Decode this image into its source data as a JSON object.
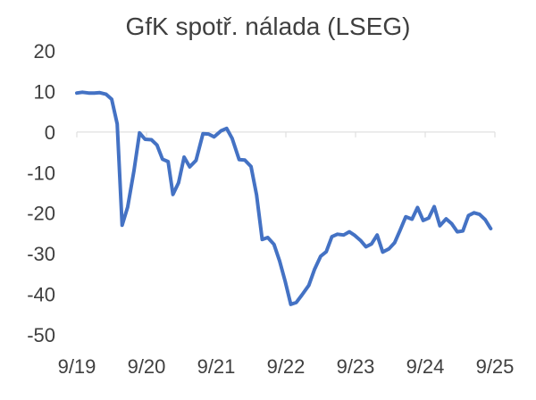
{
  "chart_data": {
    "type": "line",
    "title": "GfK spotř. nálada (LSEG)",
    "xlabel": "",
    "ylabel": "",
    "ylim": [
      -50,
      20
    ],
    "yticks": [
      20,
      10,
      0,
      -10,
      -20,
      -30,
      -40,
      -50
    ],
    "xlim": [
      2019.75,
      2025.75
    ],
    "xticks": [
      {
        "x": 2019.75,
        "label": "9/19"
      },
      {
        "x": 2020.75,
        "label": "9/20"
      },
      {
        "x": 2021.75,
        "label": "9/21"
      },
      {
        "x": 2022.75,
        "label": "9/22"
      },
      {
        "x": 2023.75,
        "label": "9/23"
      },
      {
        "x": 2024.75,
        "label": "9/24"
      },
      {
        "x": 2025.75,
        "label": "9/25"
      }
    ],
    "grid": false,
    "legend": "none",
    "series": [
      {
        "color": "#4472c4",
        "points": [
          [
            2019.75,
            9.6
          ],
          [
            2019.83,
            9.8
          ],
          [
            2019.92,
            9.6
          ],
          [
            2020.0,
            9.6
          ],
          [
            2020.08,
            9.7
          ],
          [
            2020.17,
            9.3
          ],
          [
            2020.25,
            8.1
          ],
          [
            2020.33,
            2.0
          ],
          [
            2020.4,
            -23.0
          ],
          [
            2020.48,
            -18.5
          ],
          [
            2020.57,
            -9.5
          ],
          [
            2020.65,
            -0.2
          ],
          [
            2020.73,
            -1.8
          ],
          [
            2020.82,
            -1.9
          ],
          [
            2020.9,
            -3.2
          ],
          [
            2020.98,
            -6.7
          ],
          [
            2021.06,
            -7.3
          ],
          [
            2021.13,
            -15.4
          ],
          [
            2021.21,
            -12.5
          ],
          [
            2021.29,
            -6.2
          ],
          [
            2021.37,
            -8.6
          ],
          [
            2021.46,
            -7.0
          ],
          [
            2021.56,
            -0.4
          ],
          [
            2021.64,
            -0.5
          ],
          [
            2021.72,
            -1.2
          ],
          [
            2021.82,
            0.3
          ],
          [
            2021.9,
            0.9
          ],
          [
            2021.98,
            -1.6
          ],
          [
            2022.08,
            -6.8
          ],
          [
            2022.16,
            -6.9
          ],
          [
            2022.25,
            -8.5
          ],
          [
            2022.33,
            -15.5
          ],
          [
            2022.41,
            -26.5
          ],
          [
            2022.49,
            -26.0
          ],
          [
            2022.58,
            -27.7
          ],
          [
            2022.66,
            -31.8
          ],
          [
            2022.74,
            -36.8
          ],
          [
            2022.82,
            -42.5
          ],
          [
            2022.9,
            -42.0
          ],
          [
            2022.98,
            -40.2
          ],
          [
            2023.08,
            -37.8
          ],
          [
            2023.16,
            -33.9
          ],
          [
            2023.25,
            -30.6
          ],
          [
            2023.33,
            -29.5
          ],
          [
            2023.41,
            -25.8
          ],
          [
            2023.49,
            -25.2
          ],
          [
            2023.58,
            -25.4
          ],
          [
            2023.66,
            -24.6
          ],
          [
            2023.74,
            -25.5
          ],
          [
            2023.82,
            -26.7
          ],
          [
            2023.9,
            -28.3
          ],
          [
            2023.98,
            -27.6
          ],
          [
            2024.06,
            -25.4
          ],
          [
            2024.14,
            -29.6
          ],
          [
            2024.23,
            -28.8
          ],
          [
            2024.31,
            -27.3
          ],
          [
            2024.39,
            -24.2
          ],
          [
            2024.47,
            -20.9
          ],
          [
            2024.56,
            -21.5
          ],
          [
            2024.64,
            -18.6
          ],
          [
            2024.72,
            -21.8
          ],
          [
            2024.8,
            -21.2
          ],
          [
            2024.88,
            -18.4
          ],
          [
            2024.96,
            -23.1
          ],
          [
            2025.05,
            -21.4
          ],
          [
            2025.13,
            -22.6
          ],
          [
            2025.21,
            -24.6
          ],
          [
            2025.29,
            -24.4
          ],
          [
            2025.37,
            -20.6
          ],
          [
            2025.45,
            -19.9
          ],
          [
            2025.53,
            -20.3
          ],
          [
            2025.61,
            -21.6
          ],
          [
            2025.69,
            -23.8
          ]
        ]
      }
    ]
  }
}
